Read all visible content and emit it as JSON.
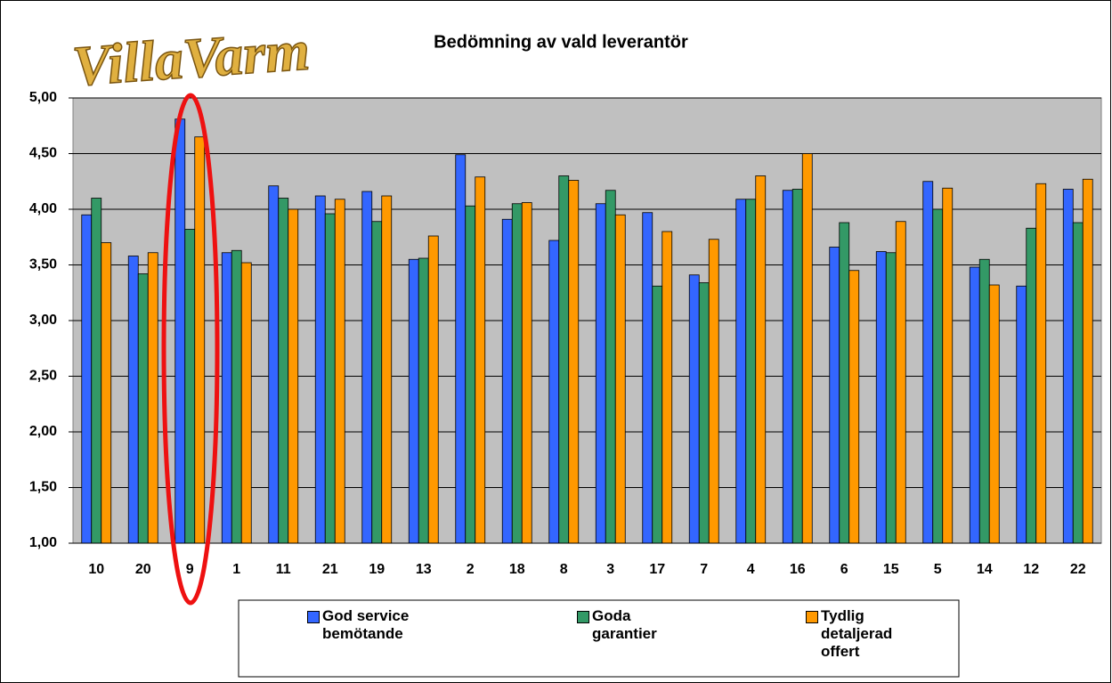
{
  "logo": "VillaVarm",
  "chart_data": {
    "type": "bar",
    "title": "Bedömning av vald leverantör",
    "categories": [
      "10",
      "20",
      "9",
      "1",
      "11",
      "21",
      "19",
      "13",
      "2",
      "18",
      "8",
      "3",
      "17",
      "7",
      "4",
      "16",
      "6",
      "15",
      "5",
      "14",
      "12",
      "22"
    ],
    "series": [
      {
        "name": "God service bemötande",
        "color": "#3366ff",
        "values": [
          3.95,
          3.58,
          4.81,
          3.61,
          4.21,
          4.12,
          4.16,
          3.55,
          4.49,
          3.91,
          3.72,
          4.05,
          3.97,
          3.41,
          4.09,
          4.17,
          3.66,
          3.62,
          4.25,
          3.48,
          3.31,
          4.18
        ]
      },
      {
        "name": "Goda garantier",
        "color": "#339966",
        "values": [
          4.1,
          3.42,
          3.82,
          3.63,
          4.1,
          3.96,
          3.89,
          3.56,
          4.03,
          4.05,
          4.3,
          4.17,
          3.31,
          3.34,
          4.09,
          4.18,
          3.88,
          3.61,
          4.0,
          3.55,
          3.83,
          3.88
        ]
      },
      {
        "name": "Tydlig detaljerad offert",
        "color": "#ff9900",
        "values": [
          3.7,
          3.61,
          4.65,
          3.52,
          4.0,
          4.09,
          4.12,
          3.76,
          4.29,
          4.06,
          4.26,
          3.95,
          3.8,
          3.73,
          4.3,
          4.5,
          3.45,
          3.89,
          4.19,
          3.32,
          4.23,
          4.27
        ]
      }
    ],
    "ylim": [
      1,
      5
    ],
    "yticks": [
      {
        "value": 1,
        "label": "1,00"
      },
      {
        "value": 1.5,
        "label": "1,50"
      },
      {
        "value": 2,
        "label": "2,00"
      },
      {
        "value": 2.5,
        "label": "2,50"
      },
      {
        "value": 3,
        "label": "3,00"
      },
      {
        "value": 3.5,
        "label": "3,50"
      },
      {
        "value": 4,
        "label": "4,00"
      },
      {
        "value": 4.5,
        "label": "4,50"
      },
      {
        "value": 5,
        "label": "5,00"
      }
    ],
    "grid": true,
    "legend": "bottom"
  }
}
